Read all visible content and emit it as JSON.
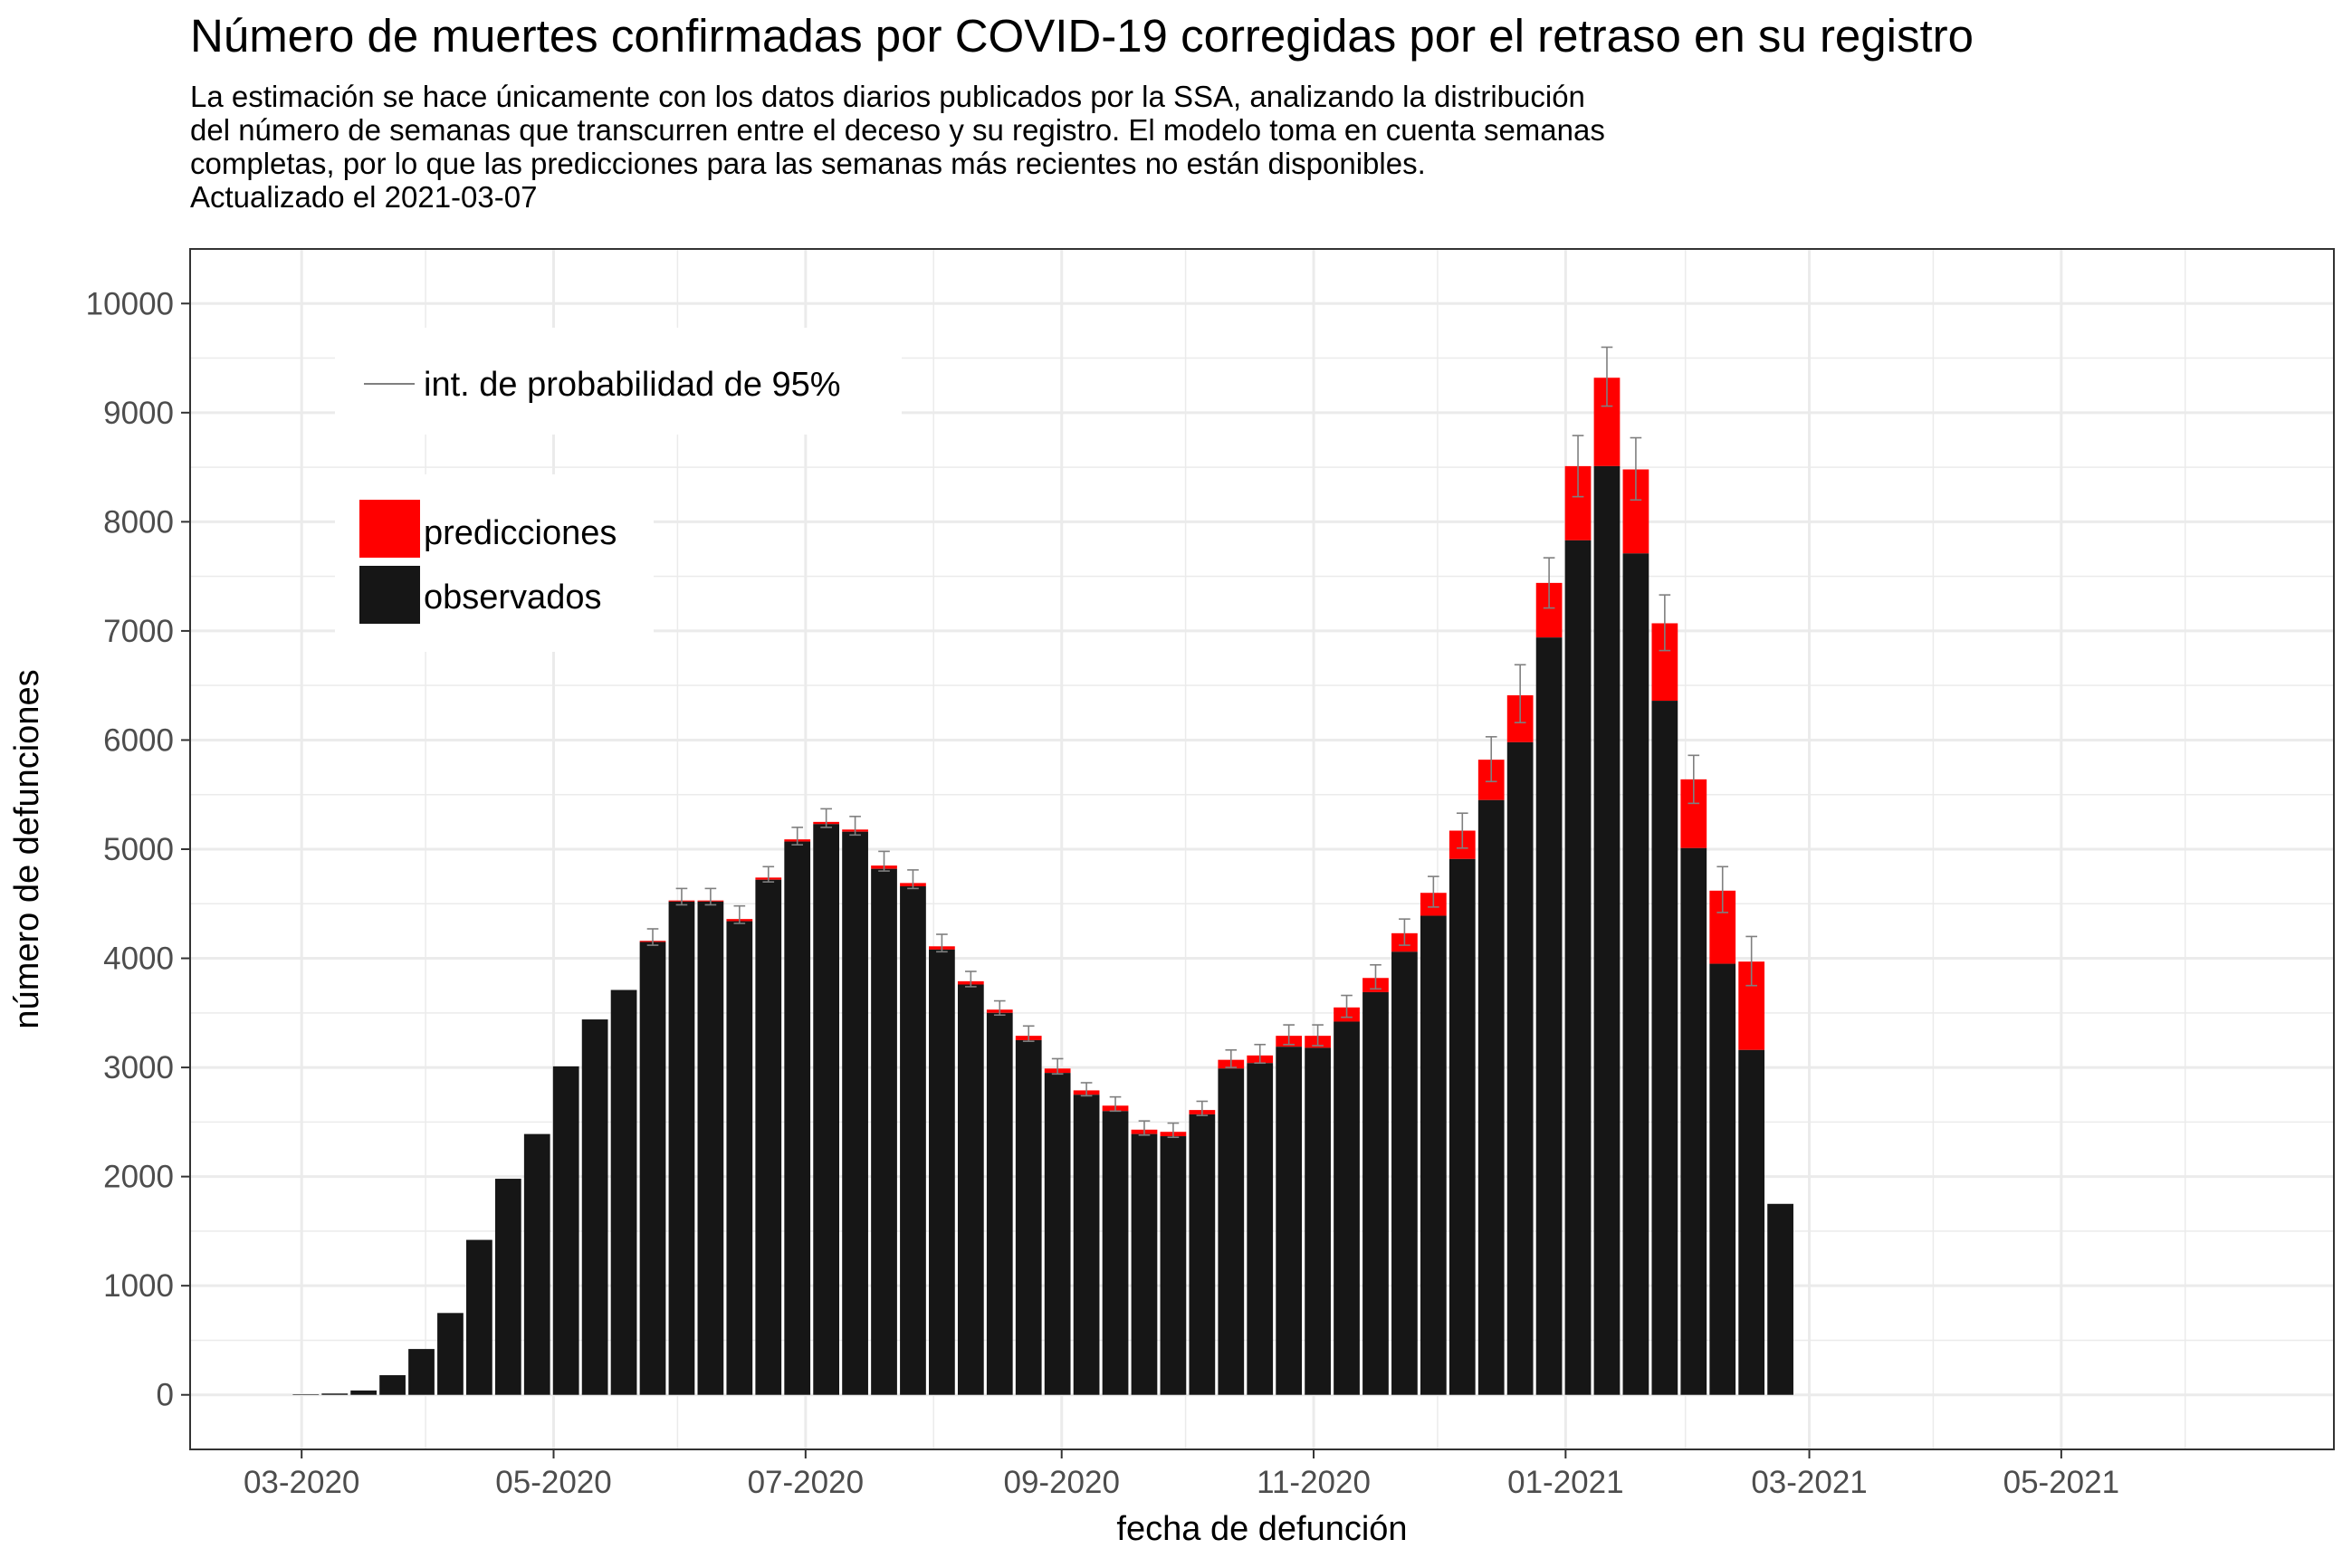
{
  "chart_data": {
    "type": "bar",
    "stacked": true,
    "title": "Número de muertes confirmadas por COVID-19 corregidas por el retraso en su registro",
    "subtitle": [
      "La estimación se hace únicamente con los datos diarios publicados por la SSA, analizando la distribución",
      "del número de semanas que transcurren entre el deceso y su registro. El modelo toma en cuenta semanas",
      "completas, por lo que las predicciones para las semanas más recientes no están disponibles.",
      "Actualizado el 2021-03-07"
    ],
    "xlabel": "fecha de defunción",
    "ylabel": "número de defunciones",
    "x_range": [
      "2020-02-03",
      "2021-07-06"
    ],
    "ylim": [
      -500,
      10500
    ],
    "y_ticks": [
      0,
      1000,
      2000,
      3000,
      4000,
      5000,
      6000,
      7000,
      8000,
      9000,
      10000
    ],
    "x_ticks": [
      {
        "date": "2020-03-01",
        "label": "03-2020"
      },
      {
        "date": "2020-05-01",
        "label": "05-2020"
      },
      {
        "date": "2020-07-01",
        "label": "07-2020"
      },
      {
        "date": "2020-09-01",
        "label": "09-2020"
      },
      {
        "date": "2020-11-01",
        "label": "11-2020"
      },
      {
        "date": "2021-01-01",
        "label": "01-2021"
      },
      {
        "date": "2021-03-01",
        "label": "03-2021"
      },
      {
        "date": "2021-05-01",
        "label": "05-2021"
      }
    ],
    "grid": true,
    "legend": {
      "interval_label": "int. de probabilidad de 95%",
      "items": [
        {
          "name": "predicciones",
          "color": "#ff0000"
        },
        {
          "name": "observados",
          "color": "#161616"
        }
      ],
      "placement": "top-left"
    },
    "colors": {
      "observed": "#161616",
      "predicted": "#ff0000",
      "interval": "#7f7f7f",
      "grid": "#ebebeb",
      "border": "#333333"
    },
    "series": [
      {
        "name": "observados",
        "key": "observed"
      },
      {
        "name": "predicciones",
        "key": "predicted"
      }
    ],
    "weeks": [
      {
        "week": "2020-03-02",
        "observed": 5,
        "predicted": null,
        "lower": null,
        "upper": null
      },
      {
        "week": "2020-03-09",
        "observed": 12,
        "predicted": null,
        "lower": null,
        "upper": null
      },
      {
        "week": "2020-03-16",
        "observed": 40,
        "predicted": null,
        "lower": null,
        "upper": null
      },
      {
        "week": "2020-03-23",
        "observed": 180,
        "predicted": null,
        "lower": null,
        "upper": null
      },
      {
        "week": "2020-03-30",
        "observed": 420,
        "predicted": null,
        "lower": null,
        "upper": null
      },
      {
        "week": "2020-04-06",
        "observed": 750,
        "predicted": null,
        "lower": null,
        "upper": null
      },
      {
        "week": "2020-04-13",
        "observed": 1420,
        "predicted": null,
        "lower": null,
        "upper": null
      },
      {
        "week": "2020-04-20",
        "observed": 1980,
        "predicted": null,
        "lower": null,
        "upper": null
      },
      {
        "week": "2020-04-27",
        "observed": 2390,
        "predicted": null,
        "lower": null,
        "upper": null
      },
      {
        "week": "2020-05-04",
        "observed": 3010,
        "predicted": null,
        "lower": null,
        "upper": null
      },
      {
        "week": "2020-05-11",
        "observed": 3440,
        "predicted": null,
        "lower": null,
        "upper": null
      },
      {
        "week": "2020-05-18",
        "observed": 3710,
        "predicted": null,
        "lower": null,
        "upper": null
      },
      {
        "week": "2020-05-25",
        "observed": 4150,
        "predicted": 4160,
        "lower": 4120,
        "upper": 4270
      },
      {
        "week": "2020-06-01",
        "observed": 4520,
        "predicted": 4530,
        "lower": 4490,
        "upper": 4640
      },
      {
        "week": "2020-06-08",
        "observed": 4520,
        "predicted": 4530,
        "lower": 4490,
        "upper": 4640
      },
      {
        "week": "2020-06-15",
        "observed": 4340,
        "predicted": 4360,
        "lower": 4320,
        "upper": 4480
      },
      {
        "week": "2020-06-22",
        "observed": 4720,
        "predicted": 4740,
        "lower": 4700,
        "upper": 4840
      },
      {
        "week": "2020-06-29",
        "observed": 5070,
        "predicted": 5090,
        "lower": 5040,
        "upper": 5200
      },
      {
        "week": "2020-07-06",
        "observed": 5230,
        "predicted": 5250,
        "lower": 5200,
        "upper": 5370
      },
      {
        "week": "2020-07-13",
        "observed": 5160,
        "predicted": 5180,
        "lower": 5130,
        "upper": 5300
      },
      {
        "week": "2020-07-20",
        "observed": 4820,
        "predicted": 4850,
        "lower": 4800,
        "upper": 4980
      },
      {
        "week": "2020-07-27",
        "observed": 4660,
        "predicted": 4690,
        "lower": 4640,
        "upper": 4810
      },
      {
        "week": "2020-08-03",
        "observed": 4080,
        "predicted": 4110,
        "lower": 4060,
        "upper": 4220
      },
      {
        "week": "2020-08-10",
        "observed": 3760,
        "predicted": 3790,
        "lower": 3740,
        "upper": 3880
      },
      {
        "week": "2020-08-17",
        "observed": 3500,
        "predicted": 3530,
        "lower": 3480,
        "upper": 3610
      },
      {
        "week": "2020-08-24",
        "observed": 3250,
        "predicted": 3290,
        "lower": 3240,
        "upper": 3380
      },
      {
        "week": "2020-08-31",
        "observed": 2950,
        "predicted": 2990,
        "lower": 2940,
        "upper": 3080
      },
      {
        "week": "2020-09-07",
        "observed": 2750,
        "predicted": 2790,
        "lower": 2740,
        "upper": 2860
      },
      {
        "week": "2020-09-14",
        "observed": 2600,
        "predicted": 2650,
        "lower": 2600,
        "upper": 2730
      },
      {
        "week": "2020-09-21",
        "observed": 2390,
        "predicted": 2430,
        "lower": 2380,
        "upper": 2510
      },
      {
        "week": "2020-09-28",
        "observed": 2370,
        "predicted": 2410,
        "lower": 2360,
        "upper": 2490
      },
      {
        "week": "2020-10-05",
        "observed": 2570,
        "predicted": 2610,
        "lower": 2560,
        "upper": 2690
      },
      {
        "week": "2020-10-12",
        "observed": 2990,
        "predicted": 3070,
        "lower": 3000,
        "upper": 3160
      },
      {
        "week": "2020-10-19",
        "observed": 3040,
        "predicted": 3110,
        "lower": 3040,
        "upper": 3210
      },
      {
        "week": "2020-10-26",
        "observed": 3190,
        "predicted": 3290,
        "lower": 3210,
        "upper": 3390
      },
      {
        "week": "2020-11-02",
        "observed": 3180,
        "predicted": 3290,
        "lower": 3200,
        "upper": 3390
      },
      {
        "week": "2020-11-09",
        "observed": 3420,
        "predicted": 3550,
        "lower": 3460,
        "upper": 3660
      },
      {
        "week": "2020-11-16",
        "observed": 3690,
        "predicted": 3820,
        "lower": 3720,
        "upper": 3940
      },
      {
        "week": "2020-11-23",
        "observed": 4060,
        "predicted": 4230,
        "lower": 4120,
        "upper": 4360
      },
      {
        "week": "2020-11-30",
        "observed": 4390,
        "predicted": 4600,
        "lower": 4470,
        "upper": 4750
      },
      {
        "week": "2020-12-07",
        "observed": 4910,
        "predicted": 5170,
        "lower": 5010,
        "upper": 5330
      },
      {
        "week": "2020-12-14",
        "observed": 5450,
        "predicted": 5820,
        "lower": 5620,
        "upper": 6030
      },
      {
        "week": "2020-12-21",
        "observed": 5980,
        "predicted": 6410,
        "lower": 6160,
        "upper": 6690
      },
      {
        "week": "2020-12-28",
        "observed": 6940,
        "predicted": 7440,
        "lower": 7210,
        "upper": 7670
      },
      {
        "week": "2021-01-04",
        "observed": 7830,
        "predicted": 8510,
        "lower": 8230,
        "upper": 8790
      },
      {
        "week": "2021-01-11",
        "observed": 8510,
        "predicted": 9320,
        "lower": 9060,
        "upper": 9600
      },
      {
        "week": "2021-01-18",
        "observed": 7710,
        "predicted": 8480,
        "lower": 8200,
        "upper": 8770
      },
      {
        "week": "2021-01-25",
        "observed": 6360,
        "predicted": 7070,
        "lower": 6820,
        "upper": 7330
      },
      {
        "week": "2021-02-01",
        "observed": 5010,
        "predicted": 5640,
        "lower": 5420,
        "upper": 5860
      },
      {
        "week": "2021-02-08",
        "observed": 3950,
        "predicted": 4620,
        "lower": 4420,
        "upper": 4840
      },
      {
        "week": "2021-02-15",
        "observed": 3160,
        "predicted": 3970,
        "lower": 3750,
        "upper": 4200
      },
      {
        "week": "2021-02-22",
        "observed": 1750,
        "predicted": null,
        "lower": null,
        "upper": null
      }
    ]
  }
}
